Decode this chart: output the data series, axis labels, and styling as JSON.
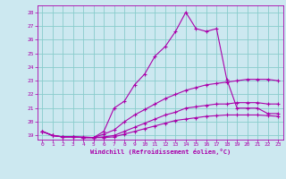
{
  "xlabel": "Windchill (Refroidissement éolien,°C)",
  "bg_color": "#cce8f0",
  "line_color": "#aa00aa",
  "grid_color": "#88cccc",
  "xlim": [
    -0.5,
    23.5
  ],
  "ylim": [
    18.7,
    28.5
  ],
  "xticks": [
    0,
    1,
    2,
    3,
    4,
    5,
    6,
    7,
    8,
    9,
    10,
    11,
    12,
    13,
    14,
    15,
    16,
    17,
    18,
    19,
    20,
    21,
    22,
    23
  ],
  "yticks": [
    19,
    20,
    21,
    22,
    23,
    24,
    25,
    26,
    27,
    28
  ],
  "lines": [
    {
      "x": [
        0,
        1,
        2,
        3,
        4,
        5,
        6,
        7,
        8,
        9,
        10,
        11,
        12,
        13,
        14,
        15,
        16,
        17,
        18,
        19,
        20,
        21,
        22,
        23
      ],
      "y": [
        19.3,
        19.0,
        18.9,
        18.9,
        18.9,
        18.85,
        19.3,
        21.0,
        21.5,
        22.7,
        23.5,
        24.8,
        25.5,
        26.6,
        28.0,
        26.8,
        26.6,
        26.8,
        23.1,
        21.0,
        21.0,
        21.0,
        20.6,
        20.6
      ]
    },
    {
      "x": [
        0,
        1,
        2,
        3,
        4,
        5,
        6,
        7,
        8,
        9,
        10,
        11,
        12,
        13,
        14,
        15,
        16,
        17,
        18,
        19,
        20,
        21,
        22,
        23
      ],
      "y": [
        19.3,
        19.0,
        18.9,
        18.9,
        18.85,
        18.85,
        19.1,
        19.4,
        20.0,
        20.5,
        20.9,
        21.3,
        21.7,
        22.0,
        22.3,
        22.5,
        22.7,
        22.8,
        22.9,
        23.0,
        23.1,
        23.1,
        23.1,
        23.0
      ]
    },
    {
      "x": [
        0,
        1,
        2,
        3,
        4,
        5,
        6,
        7,
        8,
        9,
        10,
        11,
        12,
        13,
        14,
        15,
        16,
        17,
        18,
        19,
        20,
        21,
        22,
        23
      ],
      "y": [
        19.3,
        19.0,
        18.9,
        18.9,
        18.85,
        18.85,
        18.9,
        19.0,
        19.3,
        19.6,
        19.9,
        20.2,
        20.5,
        20.7,
        21.0,
        21.1,
        21.2,
        21.3,
        21.3,
        21.4,
        21.4,
        21.4,
        21.3,
        21.3
      ]
    },
    {
      "x": [
        0,
        1,
        2,
        3,
        4,
        5,
        6,
        7,
        8,
        9,
        10,
        11,
        12,
        13,
        14,
        15,
        16,
        17,
        18,
        19,
        20,
        21,
        22,
        23
      ],
      "y": [
        19.3,
        19.0,
        18.9,
        18.9,
        18.85,
        18.85,
        18.85,
        18.9,
        19.1,
        19.3,
        19.5,
        19.7,
        19.9,
        20.1,
        20.2,
        20.3,
        20.4,
        20.45,
        20.5,
        20.5,
        20.5,
        20.5,
        20.45,
        20.4
      ]
    }
  ]
}
